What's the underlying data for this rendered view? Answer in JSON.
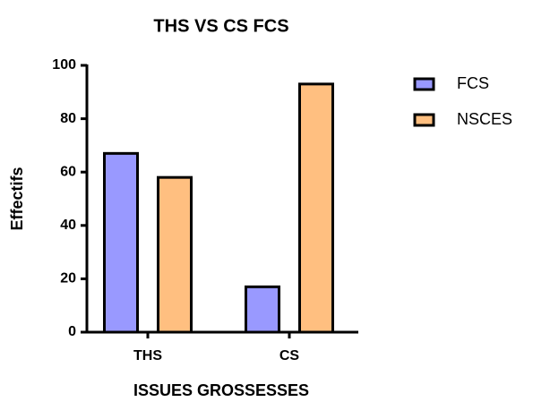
{
  "chart_data": {
    "type": "bar",
    "title": "THS VS CS FCS",
    "xlabel": "ISSUES GROSSESSES",
    "ylabel": "Effectifs",
    "categories": [
      "THS",
      "CS"
    ],
    "series": [
      {
        "name": "FCS",
        "color": "#9999ff",
        "values": [
          67,
          17
        ]
      },
      {
        "name": "NSCES",
        "color": "#ffbf80",
        "values": [
          58,
          93
        ]
      }
    ],
    "ylim": [
      0,
      100
    ],
    "yticks": [
      0,
      20,
      40,
      60,
      80,
      100
    ],
    "grid": false,
    "legend": "right"
  }
}
